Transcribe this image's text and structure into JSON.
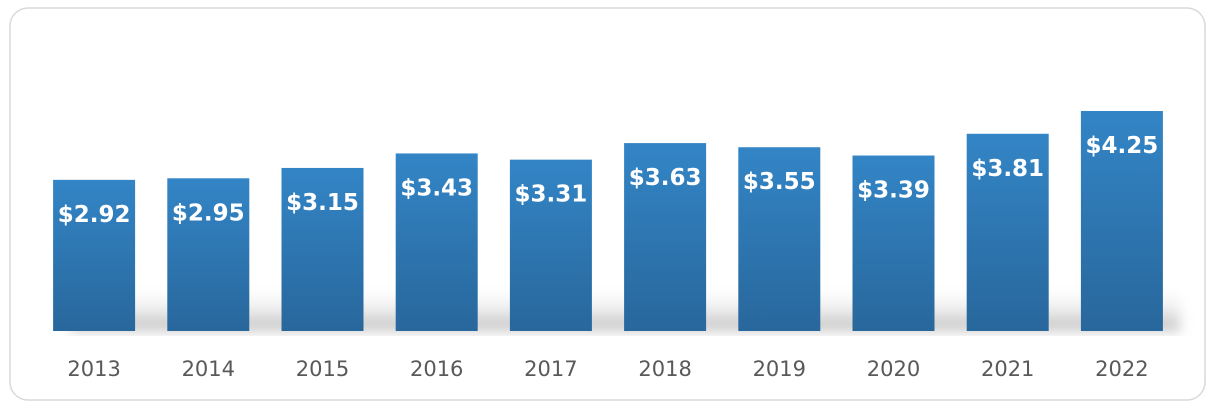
{
  "chart_data": {
    "type": "bar",
    "categories": [
      "2013",
      "2014",
      "2015",
      "2016",
      "2017",
      "2018",
      "2019",
      "2020",
      "2021",
      "2022"
    ],
    "values": [
      2.92,
      2.95,
      3.15,
      3.43,
      3.31,
      3.63,
      3.55,
      3.39,
      3.81,
      4.25
    ],
    "value_labels": [
      "$2.92",
      "$2.95",
      "$3.15",
      "$3.43",
      "$3.31",
      "$3.63",
      "$3.55",
      "$3.39",
      "$3.81",
      "$4.25"
    ],
    "color": "#2e75b6"
  }
}
